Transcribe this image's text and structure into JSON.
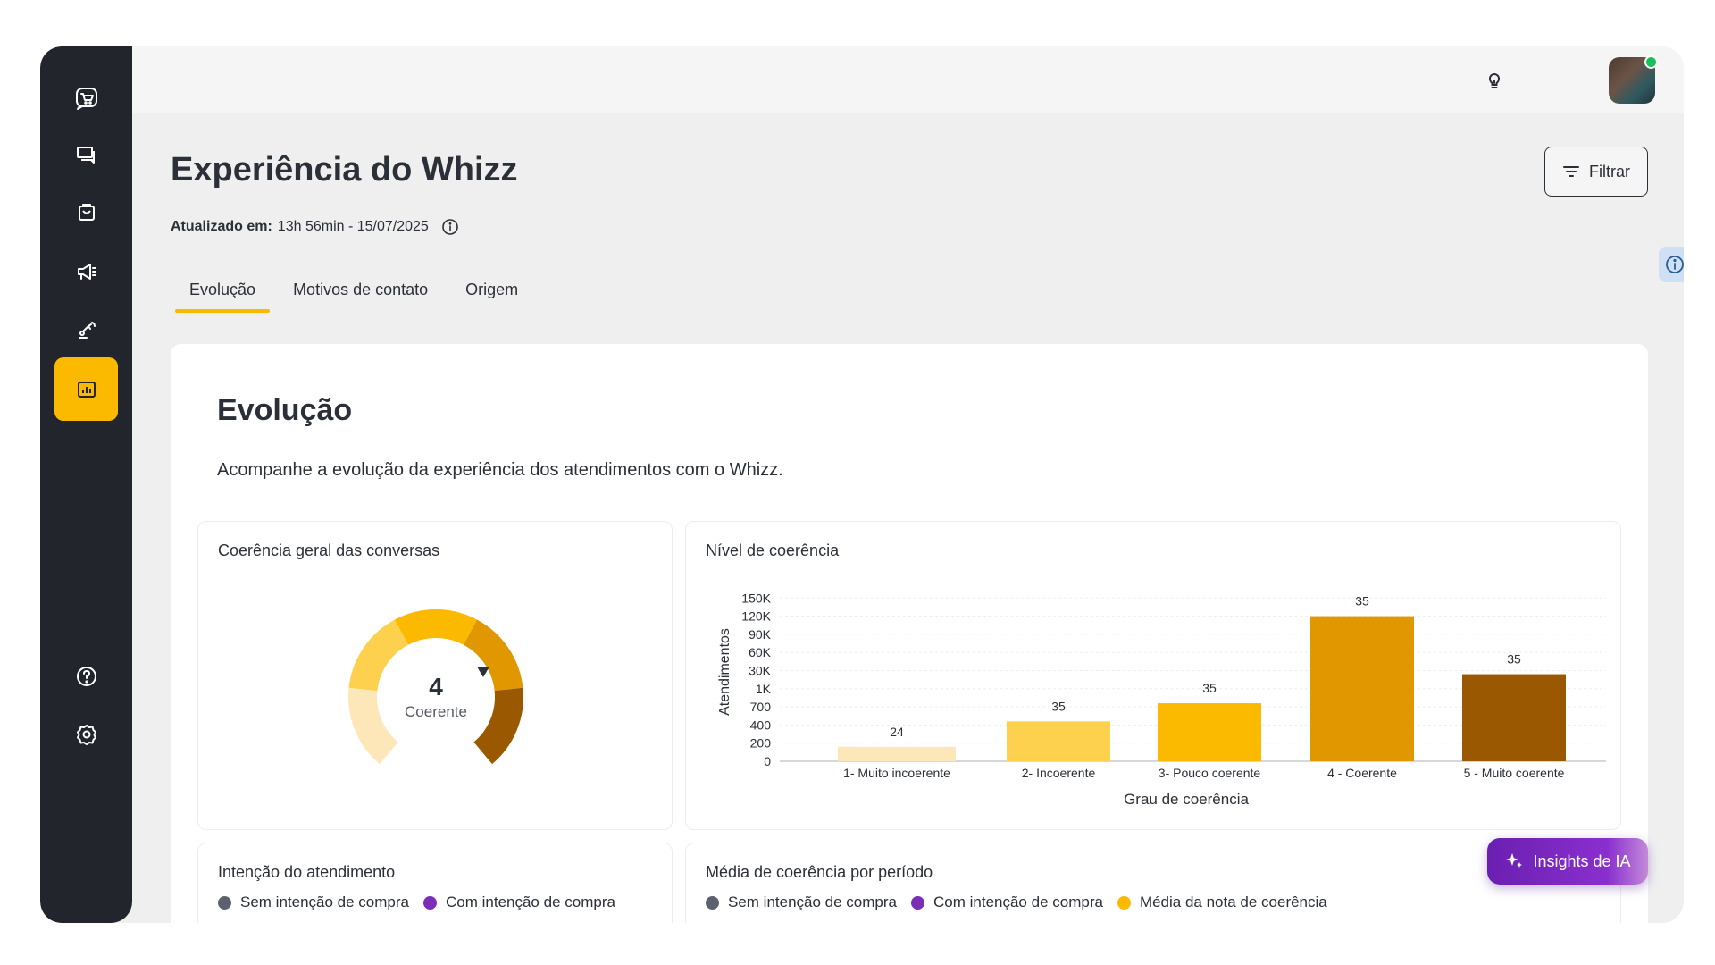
{
  "page": {
    "title": "Experiência do Whizz",
    "updated_label": "Atualizado em:",
    "updated_value": "13h 56min - 15/07/2025",
    "filter_label": "Filtrar"
  },
  "tabs": [
    {
      "label": "Evolução",
      "active": true
    },
    {
      "label": "Motivos de contato",
      "active": false
    },
    {
      "label": "Origem",
      "active": false
    }
  ],
  "section": {
    "title": "Evolução",
    "subtitle": "Acompanhe a evolução da experiência dos atendimentos com o Whizz."
  },
  "sidebar": {
    "items": [
      {
        "icon": "cart-chat-icon"
      },
      {
        "icon": "chat-icon"
      },
      {
        "icon": "bag-icon"
      },
      {
        "icon": "megaphone-icon"
      },
      {
        "icon": "robot-arm-icon"
      },
      {
        "icon": "report-chart-icon",
        "active": true
      },
      {
        "icon": "help-icon"
      },
      {
        "icon": "settings-icon"
      }
    ]
  },
  "panels": {
    "coherence_title": "Coerência geral das conversas",
    "level_title": "Nível de coerência",
    "intent_title": "Intenção do atendimento",
    "average_title": "Média de coerência por  período"
  },
  "gauge": {
    "value": "4",
    "label": "Coerente",
    "segments": [
      "#fde7b8",
      "#fdd04d",
      "#fbb900",
      "#e09700",
      "#9a5800"
    ]
  },
  "legends": {
    "intent": [
      {
        "label": "Sem intenção de compra",
        "color": "#5c6170"
      },
      {
        "label": "Com intenção de compra",
        "color": "#7b2fb8"
      }
    ],
    "average": [
      {
        "label": "Sem intenção de compra",
        "color": "#5c6170"
      },
      {
        "label": "Com intenção de compra",
        "color": "#7b2fb8"
      },
      {
        "label": "Média da nota de coerência",
        "color": "#fbb900"
      }
    ]
  },
  "insights_label": "Insights de IA",
  "chart_data": {
    "type": "bar",
    "title": "Nível de coerência",
    "xlabel": "Grau de coerência",
    "ylabel": "Atendimentos",
    "y_ticks": [
      "0",
      "200",
      "400",
      "700",
      "1K",
      "30K",
      "60K",
      "90K",
      "120K",
      "150K"
    ],
    "categories": [
      "1- Muito incoerente",
      "2- Incoerente",
      "3- Pouco coerente",
      "4 - Coerente",
      "5 - Muito coerente"
    ],
    "values": [
      24,
      35,
      35,
      35,
      35
    ],
    "bar_levels": [
      0.8,
      2.2,
      3.2,
      8.0,
      4.8
    ],
    "colors": [
      "#fde7b8",
      "#fdd04d",
      "#fbb900",
      "#e09700",
      "#9a5800"
    ],
    "grid": true
  }
}
